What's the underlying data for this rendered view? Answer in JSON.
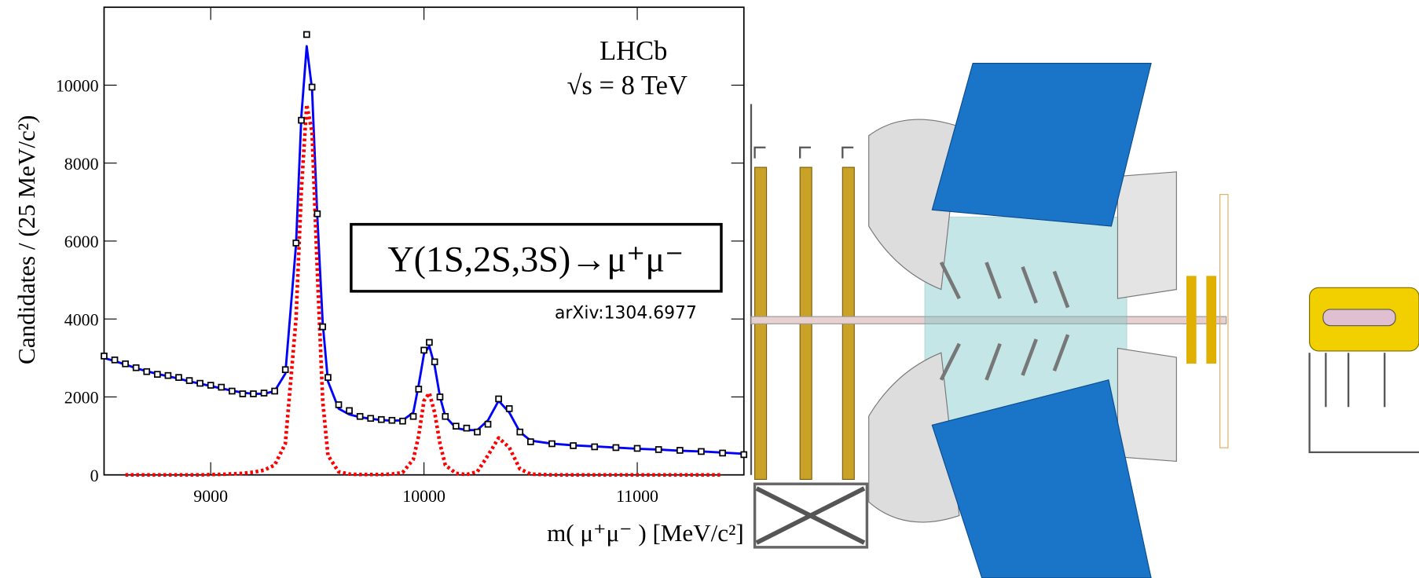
{
  "chart_data": {
    "type": "line",
    "annotations": {
      "experiment": "LHCb",
      "energy": "√s = 8 TeV",
      "decay": "Υ(1S,2S,3S)→μ⁺μ⁻",
      "reference": "arXiv:1304.6977"
    },
    "x_label": "m( μ⁺μ⁻ ) [MeV/c²]",
    "y_label": "Candidates / (25 MeV/c²)",
    "xlim": [
      8500,
      11500
    ],
    "ylim": [
      0,
      12000
    ],
    "xticks": [
      9000,
      10000,
      11000
    ],
    "yticks": [
      0,
      2000,
      4000,
      6000,
      8000,
      10000
    ],
    "x": [
      8500,
      8550,
      8600,
      8650,
      8700,
      8750,
      8800,
      8850,
      8900,
      8950,
      9000,
      9050,
      9100,
      9150,
      9200,
      9250,
      9300,
      9350,
      9400,
      9425,
      9450,
      9475,
      9500,
      9525,
      9550,
      9600,
      9650,
      9700,
      9750,
      9800,
      9850,
      9900,
      9950,
      9975,
      10000,
      10025,
      10050,
      10075,
      10100,
      10150,
      10200,
      10250,
      10300,
      10350,
      10400,
      10450,
      10500,
      10600,
      10700,
      10800,
      10900,
      11000,
      11100,
      11200,
      11300,
      11400,
      11500
    ],
    "series": [
      {
        "style": "solid",
        "color": "#0000ff",
        "values": [
          3000,
          2920,
          2830,
          2740,
          2660,
          2590,
          2530,
          2470,
          2400,
          2340,
          2280,
          2220,
          2160,
          2110,
          2080,
          2080,
          2150,
          2600,
          5900,
          9200,
          11000,
          9900,
          6600,
          3900,
          2400,
          1700,
          1550,
          1480,
          1440,
          1410,
          1390,
          1400,
          1600,
          2300,
          3100,
          3300,
          2800,
          2000,
          1500,
          1200,
          1150,
          1150,
          1400,
          1900,
          1600,
          1100,
          880,
          800,
          760,
          730,
          700,
          670,
          650,
          620,
          600,
          570,
          540
        ]
      },
      {
        "style": "dotted",
        "color": "#ff0000",
        "values": [
          null,
          null,
          0,
          0,
          0,
          0,
          0,
          0,
          0,
          0,
          10,
          15,
          25,
          40,
          70,
          120,
          250,
          800,
          4000,
          7300,
          9500,
          8800,
          5200,
          1900,
          500,
          80,
          20,
          10,
          10,
          10,
          20,
          60,
          400,
          1000,
          1900,
          2100,
          1600,
          800,
          250,
          40,
          10,
          80,
          500,
          950,
          700,
          150,
          20,
          0,
          0,
          0,
          0,
          0,
          0,
          0,
          0,
          0,
          null
        ]
      },
      {
        "style": "markers",
        "color": "#000000",
        "values": [
          3050,
          2950,
          2850,
          2750,
          2650,
          2580,
          2550,
          2500,
          2420,
          2350,
          2300,
          2250,
          2150,
          2080,
          2080,
          2100,
          2150,
          2700,
          5950,
          9100,
          11300,
          9950,
          6700,
          3800,
          2500,
          1800,
          1650,
          1500,
          1450,
          1420,
          1400,
          1380,
          1500,
          2200,
          3200,
          3400,
          2900,
          2000,
          1500,
          1250,
          1200,
          1100,
          1300,
          1950,
          1700,
          1100,
          850,
          800,
          750,
          720,
          700,
          680,
          650,
          630,
          600,
          560,
          520
        ]
      }
    ]
  }
}
